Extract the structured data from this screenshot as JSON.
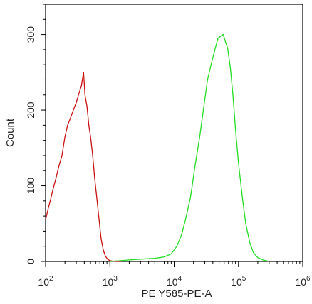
{
  "chart_data": {
    "type": "line",
    "title": "",
    "xlabel": "PE Y585-PE-A",
    "ylabel": "Count",
    "xscale": "log",
    "xlim": [
      100,
      1000000
    ],
    "ylim": [
      0,
      340
    ],
    "grid": false,
    "x_ticks": [
      {
        "value": 100,
        "base": "10",
        "exp": "2"
      },
      {
        "value": 1000,
        "base": "10",
        "exp": "3"
      },
      {
        "value": 10000,
        "base": "10",
        "exp": "4"
      },
      {
        "value": 100000,
        "base": "10",
        "exp": "5"
      },
      {
        "value": 1000000,
        "base": "10",
        "exp": "6"
      }
    ],
    "y_ticks": [
      0,
      100,
      200,
      300
    ],
    "series": [
      {
        "color": "#cc1111",
        "x": [
          100,
          110,
          120,
          130,
          145,
          160,
          180,
          200,
          220,
          245,
          270,
          300,
          330,
          360,
          390,
          410,
          440,
          470,
          500,
          540,
          580,
          630,
          680,
          730,
          790,
          850,
          920,
          1000,
          1200,
          1500
        ],
        "y": [
          55,
          70,
          82,
          95,
          110,
          125,
          140,
          165,
          180,
          190,
          200,
          210,
          222,
          232,
          250,
          220,
          205,
          180,
          165,
          140,
          110,
          82,
          55,
          30,
          15,
          7,
          3,
          1,
          0,
          0
        ]
      },
      {
        "color": "#22dd22",
        "x": [
          1000,
          2000,
          3000,
          5000,
          7000,
          9000,
          11000,
          13000,
          15000,
          18000,
          21000,
          25000,
          29000,
          33000,
          38000,
          43000,
          48000,
          53000,
          58000,
          63000,
          68000,
          75000,
          82000,
          90000,
          100000,
          115000,
          130000,
          150000,
          170000,
          200000,
          240000,
          300000
        ],
        "y": [
          0,
          2,
          3,
          4,
          6,
          10,
          20,
          35,
          55,
          85,
          125,
          165,
          205,
          240,
          262,
          280,
          295,
          298,
          300,
          290,
          282,
          255,
          220,
          175,
          130,
          85,
          50,
          25,
          12,
          5,
          2,
          0
        ]
      }
    ]
  }
}
